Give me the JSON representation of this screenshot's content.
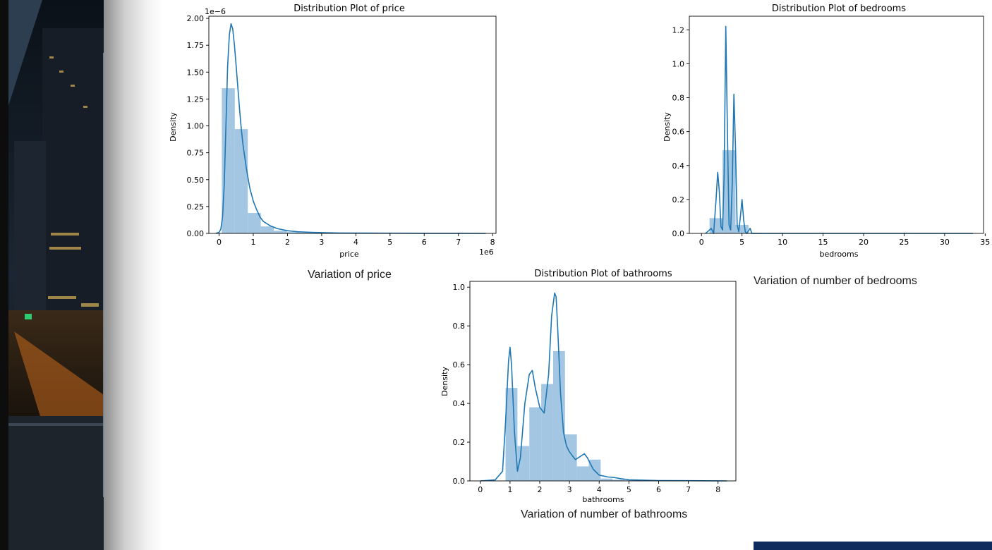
{
  "captions": {
    "price": "Variation of price",
    "bedrooms": "Variation of number of bedrooms",
    "bathrooms": "Variation of number of bathrooms"
  },
  "colors": {
    "hist_fill": "#9ec4e0",
    "kde_line": "#1f77b4",
    "accent_bar": "#0f2a5c"
  },
  "chart_data": [
    {
      "id": "price",
      "type": "bar",
      "title": "Distribution Plot of price",
      "xlabel": "price",
      "ylabel": "Density",
      "x_multiplier": "1e6",
      "y_multiplier": "1e−6",
      "xlim": [
        -0.3,
        8.1
      ],
      "ylim": [
        0,
        2.02
      ],
      "xticks": [
        0,
        1,
        2,
        3,
        4,
        5,
        6,
        7,
        8
      ],
      "yticks": [
        0.0,
        0.25,
        0.5,
        0.75,
        1.0,
        1.25,
        1.5,
        1.75,
        2.0
      ],
      "ytick_labels": [
        "0.00",
        "0.25",
        "0.50",
        "0.75",
        "1.00",
        "1.25",
        "1.50",
        "1.75",
        "2.00"
      ],
      "bins": {
        "start": 0.08,
        "width": 0.38
      },
      "values": [
        1.35,
        0.97,
        0.19,
        0.065,
        0.025,
        0.012,
        0.007,
        0.004,
        0.003,
        0.002,
        0.001,
        0.001,
        0.0005,
        0.0005,
        0.0003,
        0.0002,
        0.0002,
        0.0001,
        0.0001,
        0.0001
      ],
      "kde": {
        "x": [
          -0.1,
          0.0,
          0.05,
          0.1,
          0.15,
          0.2,
          0.25,
          0.3,
          0.35,
          0.4,
          0.45,
          0.5,
          0.55,
          0.6,
          0.65,
          0.7,
          0.8,
          0.9,
          1.0,
          1.1,
          1.2,
          1.3,
          1.5,
          1.7,
          2.0,
          2.3,
          2.7,
          3.0,
          3.5,
          4.0,
          5.0,
          6.0,
          7.0,
          7.8
        ],
        "y": [
          0.0,
          0.01,
          0.04,
          0.15,
          0.45,
          1.0,
          1.55,
          1.85,
          1.95,
          1.9,
          1.75,
          1.55,
          1.35,
          1.15,
          0.97,
          0.82,
          0.6,
          0.42,
          0.3,
          0.22,
          0.15,
          0.11,
          0.07,
          0.045,
          0.025,
          0.015,
          0.01,
          0.007,
          0.004,
          0.003,
          0.002,
          0.001,
          0.001,
          0.0
        ]
      }
    },
    {
      "id": "bedrooms",
      "type": "bar",
      "title": "Distribution Plot of bedrooms",
      "xlabel": "bedrooms",
      "ylabel": "Density",
      "xlim": [
        -1.5,
        34.8
      ],
      "ylim": [
        0,
        1.28
      ],
      "xticks": [
        0,
        5,
        10,
        15,
        20,
        25,
        30,
        35
      ],
      "yticks": [
        0.0,
        0.2,
        0.4,
        0.6,
        0.8,
        1.0,
        1.2
      ],
      "ytick_labels": [
        "0.0",
        "0.2",
        "0.4",
        "0.6",
        "0.8",
        "1.0",
        "1.2"
      ],
      "bins": {
        "start": 1.0,
        "width": 1.6
      },
      "values": [
        0.09,
        0.49,
        0.05,
        0.004,
        0.001,
        0.0005,
        0.0003,
        0.0002,
        0.0001,
        0.0001,
        0.0001,
        0.0001,
        0.0001,
        0.0001,
        0.0001,
        0.0001,
        0.0001,
        0.0001,
        0.0001,
        0.0001
      ],
      "kde": {
        "x": [
          0.5,
          1.0,
          1.2,
          1.5,
          1.8,
          2.0,
          2.2,
          2.4,
          2.6,
          2.8,
          3.0,
          3.2,
          3.4,
          3.6,
          3.8,
          4.0,
          4.2,
          4.4,
          4.6,
          4.8,
          5.0,
          5.2,
          5.4,
          5.6,
          6.0,
          6.2,
          6.5,
          7.0,
          8.0,
          10.0,
          15.0,
          20.0,
          25.0,
          30.0,
          33.5
        ],
        "y": [
          0.0,
          0.02,
          0.03,
          0.0,
          0.2,
          0.36,
          0.25,
          0.04,
          0.02,
          0.35,
          1.22,
          0.6,
          0.05,
          0.02,
          0.3,
          0.82,
          0.5,
          0.05,
          0.01,
          0.1,
          0.2,
          0.08,
          0.01,
          0.0,
          0.03,
          0.0,
          0.0,
          0.0,
          0.0,
          0.0,
          0.0,
          0.0,
          0.0,
          0.0,
          0.0
        ]
      }
    },
    {
      "id": "bathrooms",
      "type": "bar",
      "title": "Distribution Plot of bathrooms",
      "xlabel": "bathrooms",
      "ylabel": "Density",
      "xlim": [
        -0.35,
        8.6
      ],
      "ylim": [
        0,
        1.03
      ],
      "xticks": [
        0,
        1,
        2,
        3,
        4,
        5,
        6,
        7,
        8
      ],
      "yticks": [
        0.0,
        0.2,
        0.4,
        0.6,
        0.8,
        1.0
      ],
      "ytick_labels": [
        "0.0",
        "0.2",
        "0.4",
        "0.6",
        "0.8",
        "1.0"
      ],
      "bins": {
        "start": 0.85,
        "width": 0.4
      },
      "values": [
        0.48,
        0.18,
        0.38,
        0.5,
        0.67,
        0.24,
        0.075,
        0.11,
        0.012,
        0.006,
        0.003,
        0.002,
        0.001,
        0.001,
        0.001,
        0.0005,
        0.0005,
        0.0003,
        0.0002
      ],
      "kde": {
        "x": [
          0.0,
          0.5,
          0.75,
          0.85,
          0.95,
          1.0,
          1.05,
          1.15,
          1.25,
          1.35,
          1.5,
          1.65,
          1.75,
          1.85,
          2.0,
          2.15,
          2.3,
          2.4,
          2.5,
          2.55,
          2.6,
          2.7,
          2.8,
          2.9,
          3.0,
          3.2,
          3.4,
          3.5,
          3.6,
          3.8,
          4.0,
          4.3,
          4.5,
          4.7,
          5.0,
          6.0,
          7.0,
          8.3
        ],
        "y": [
          0.0,
          0.005,
          0.05,
          0.3,
          0.62,
          0.69,
          0.6,
          0.25,
          0.05,
          0.12,
          0.4,
          0.55,
          0.57,
          0.48,
          0.38,
          0.35,
          0.55,
          0.85,
          0.97,
          0.95,
          0.8,
          0.45,
          0.25,
          0.18,
          0.15,
          0.11,
          0.13,
          0.14,
          0.12,
          0.06,
          0.03,
          0.02,
          0.018,
          0.012,
          0.006,
          0.002,
          0.001,
          0.0
        ]
      }
    }
  ]
}
